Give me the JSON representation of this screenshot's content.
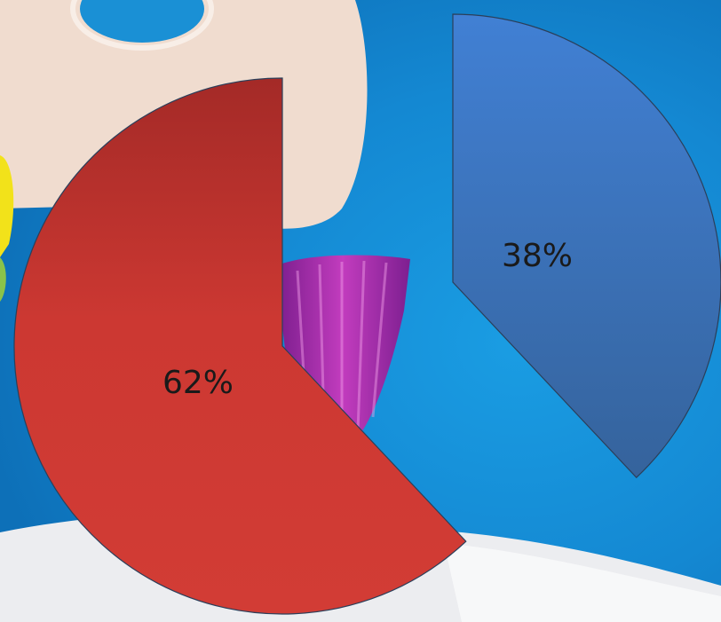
{
  "chart_data": {
    "type": "pie",
    "exploded": true,
    "title": "",
    "slices": [
      {
        "value": 38,
        "label": "38%",
        "color": "#3f79c9",
        "color_dark": "#345f96"
      },
      {
        "value": 62,
        "label": "62%",
        "color": "#cf3a33",
        "color_dark": "#a92a28"
      }
    ],
    "legend": "none"
  },
  "background": {
    "description_icon": "photo-background",
    "sky_color": "#1588d3"
  }
}
